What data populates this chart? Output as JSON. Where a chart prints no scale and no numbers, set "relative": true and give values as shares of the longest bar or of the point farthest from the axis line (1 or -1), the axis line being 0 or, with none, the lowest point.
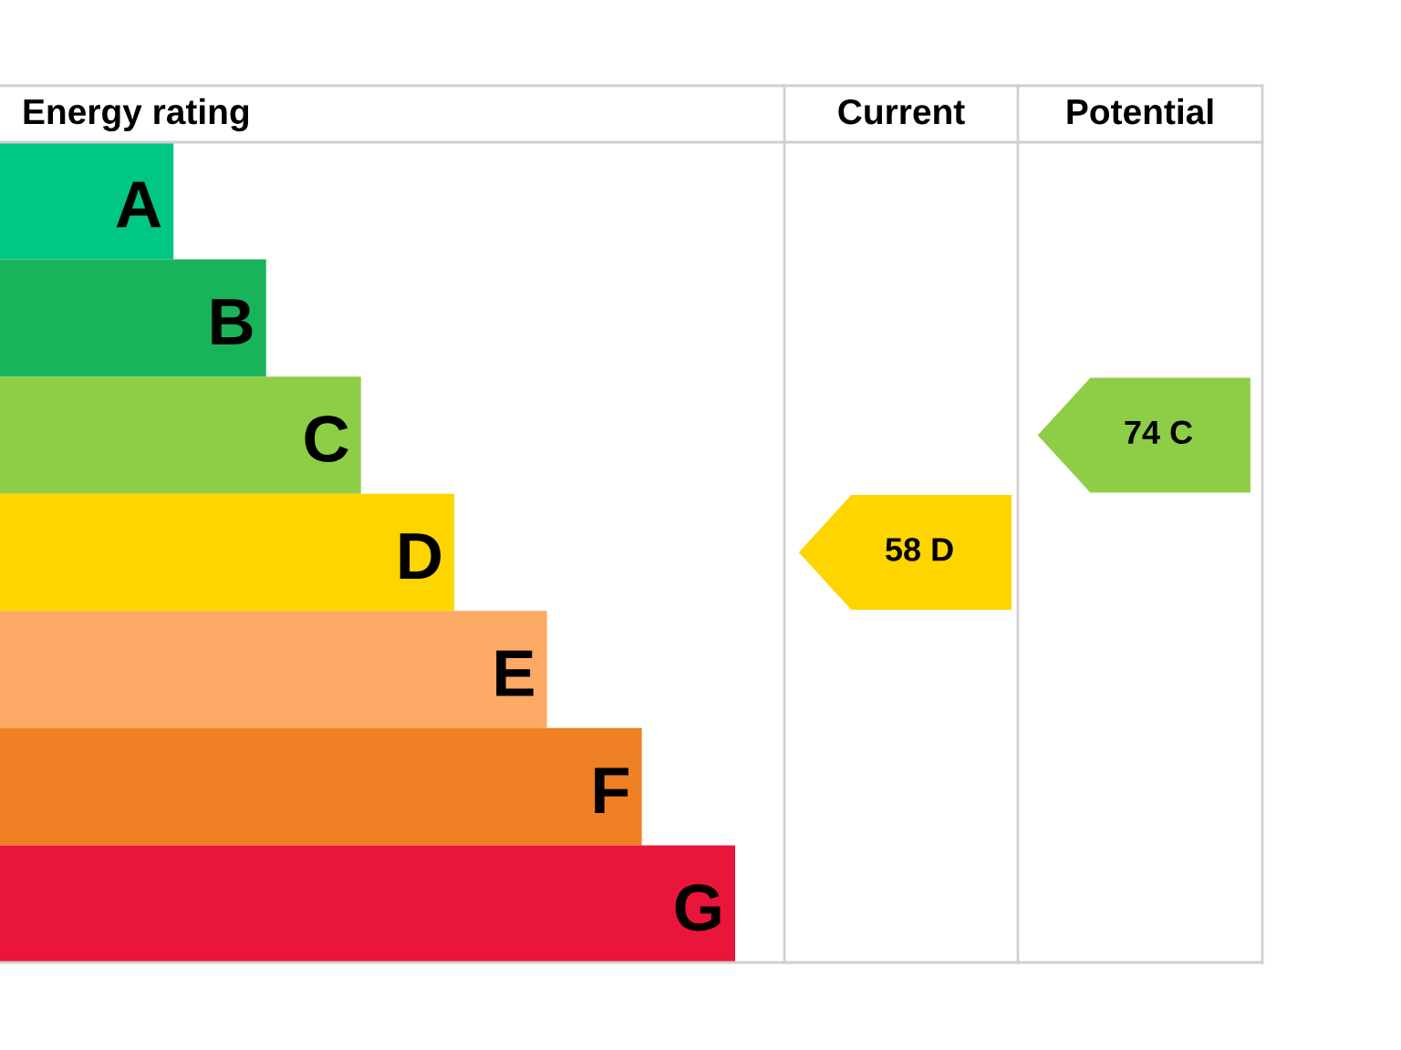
{
  "chart_data": {
    "type": "bar",
    "orientation": "horizontal",
    "relative": true,
    "title": "Energy rating",
    "categories": [
      "A",
      "B",
      "C",
      "D",
      "E",
      "F",
      "G"
    ],
    "values": [
      0.236,
      0.362,
      0.491,
      0.618,
      0.744,
      0.873,
      1
    ],
    "colors": [
      "#00c781",
      "#19b459",
      "#8dce46",
      "#ffd500",
      "#fcaa65",
      "#ef8023",
      "#e9153b"
    ],
    "annotations": [
      "Current",
      "Potential",
      "58 D",
      "74 C"
    ]
  }
}
